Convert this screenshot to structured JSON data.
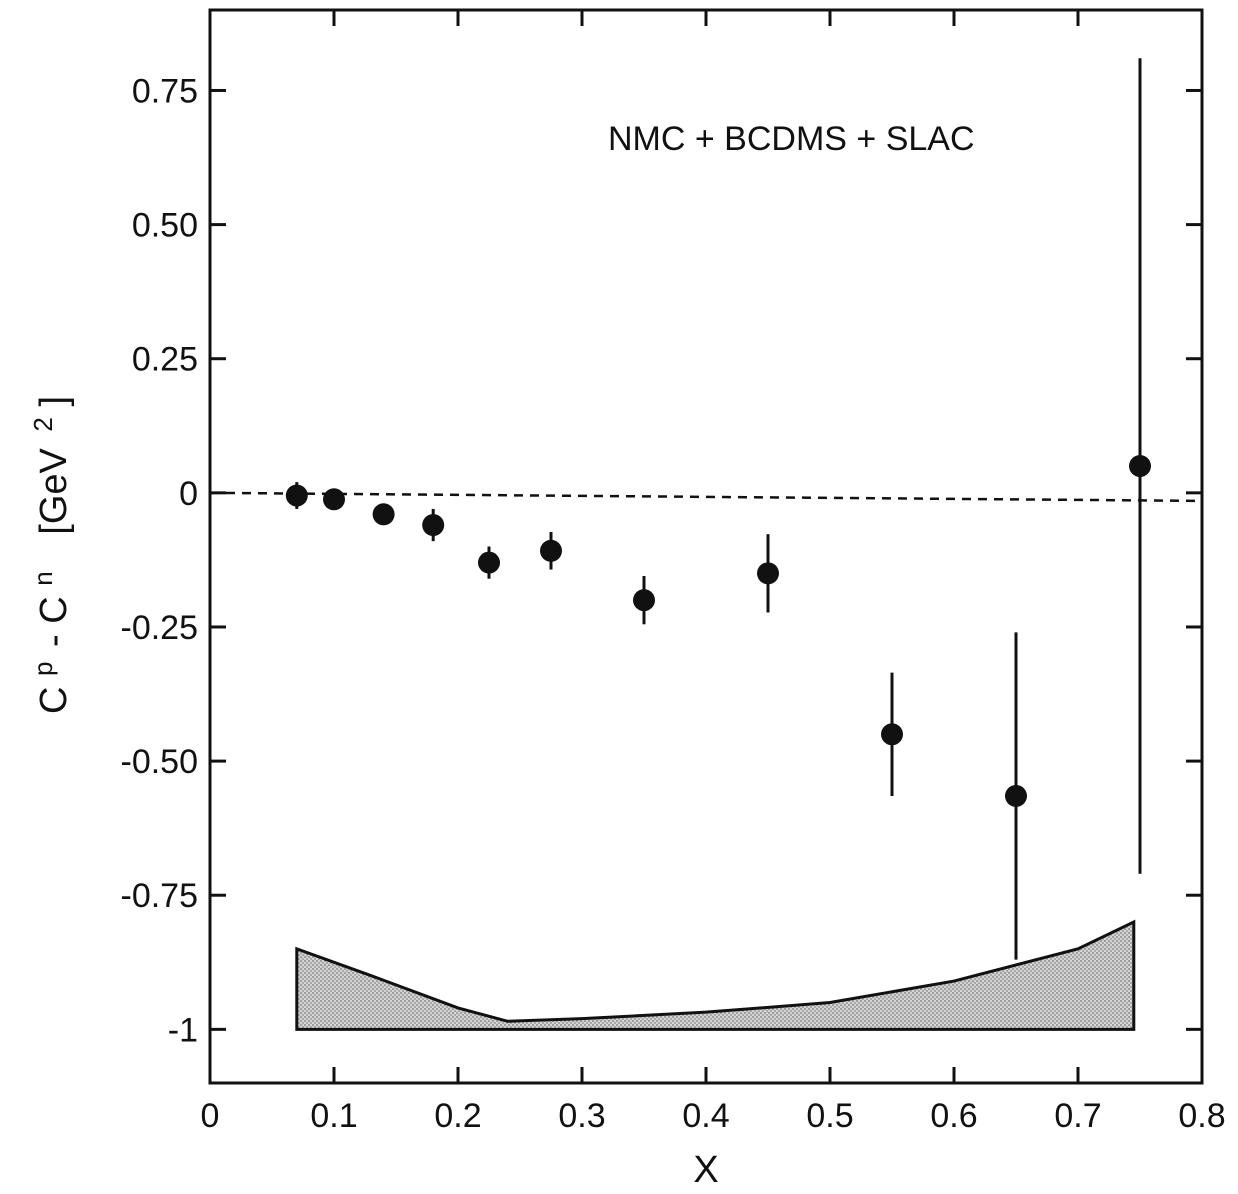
{
  "chart_data": {
    "type": "scatter",
    "title": "",
    "annotation": "NMC + BCDMS + SLAC",
    "xlabel": "X",
    "ylabel": {
      "base1": "C",
      "sup1": "p",
      "minus": "- C",
      "sup2": "n",
      "unit": "[GeV",
      "unit_sup": "2",
      "unit_close": "]"
    },
    "xlim": [
      0,
      0.8
    ],
    "ylim": [
      -1.1,
      0.9
    ],
    "x_ticks": [
      {
        "value": 0,
        "label": "0"
      },
      {
        "value": 0.1,
        "label": "0.1"
      },
      {
        "value": 0.2,
        "label": "0.2"
      },
      {
        "value": 0.3,
        "label": "0.3"
      },
      {
        "value": 0.4,
        "label": "0.4"
      },
      {
        "value": 0.5,
        "label": "0.5"
      },
      {
        "value": 0.6,
        "label": "0.6"
      },
      {
        "value": 0.7,
        "label": "0.7"
      },
      {
        "value": 0.8,
        "label": "0.8"
      }
    ],
    "y_ticks": [
      {
        "value": 0.75,
        "label": "0.75"
      },
      {
        "value": 0.5,
        "label": "0.50"
      },
      {
        "value": 0.25,
        "label": "0.25"
      },
      {
        "value": 0,
        "label": "0"
      },
      {
        "value": -0.25,
        "label": "-0.25"
      },
      {
        "value": -0.5,
        "label": "-0.50"
      },
      {
        "value": -0.75,
        "label": "-0.75"
      },
      {
        "value": -1,
        "label": "-1"
      }
    ],
    "reference_line": {
      "y_start": 0,
      "y_end": -0.015,
      "style": "dashed"
    },
    "points": [
      {
        "x": 0.07,
        "y": -0.005,
        "err": 0.025
      },
      {
        "x": 0.1,
        "y": -0.012,
        "err": 0.012
      },
      {
        "x": 0.14,
        "y": -0.04,
        "err": 0.02
      },
      {
        "x": 0.18,
        "y": -0.06,
        "err": 0.03
      },
      {
        "x": 0.225,
        "y": -0.13,
        "err": 0.03
      },
      {
        "x": 0.275,
        "y": -0.108,
        "err": 0.035
      },
      {
        "x": 0.35,
        "y": -0.2,
        "err": 0.045
      },
      {
        "x": 0.45,
        "y": -0.15,
        "err": 0.073
      },
      {
        "x": 0.55,
        "y": -0.45,
        "err": 0.115
      },
      {
        "x": 0.65,
        "y": -0.565,
        "err": 0.305
      },
      {
        "x": 0.75,
        "y": 0.05,
        "err": 0.76
      }
    ],
    "systematic_band": {
      "fill": "#c8c8c8",
      "baseline": -1,
      "upper": [
        {
          "x": 0.07,
          "y": -0.85
        },
        {
          "x": 0.13,
          "y": -0.9
        },
        {
          "x": 0.2,
          "y": -0.96
        },
        {
          "x": 0.24,
          "y": -0.985
        },
        {
          "x": 0.3,
          "y": -0.98
        },
        {
          "x": 0.4,
          "y": -0.968
        },
        {
          "x": 0.5,
          "y": -0.95
        },
        {
          "x": 0.6,
          "y": -0.91
        },
        {
          "x": 0.7,
          "y": -0.85
        },
        {
          "x": 0.745,
          "y": -0.8
        }
      ]
    },
    "grid": false,
    "legend": "none"
  }
}
